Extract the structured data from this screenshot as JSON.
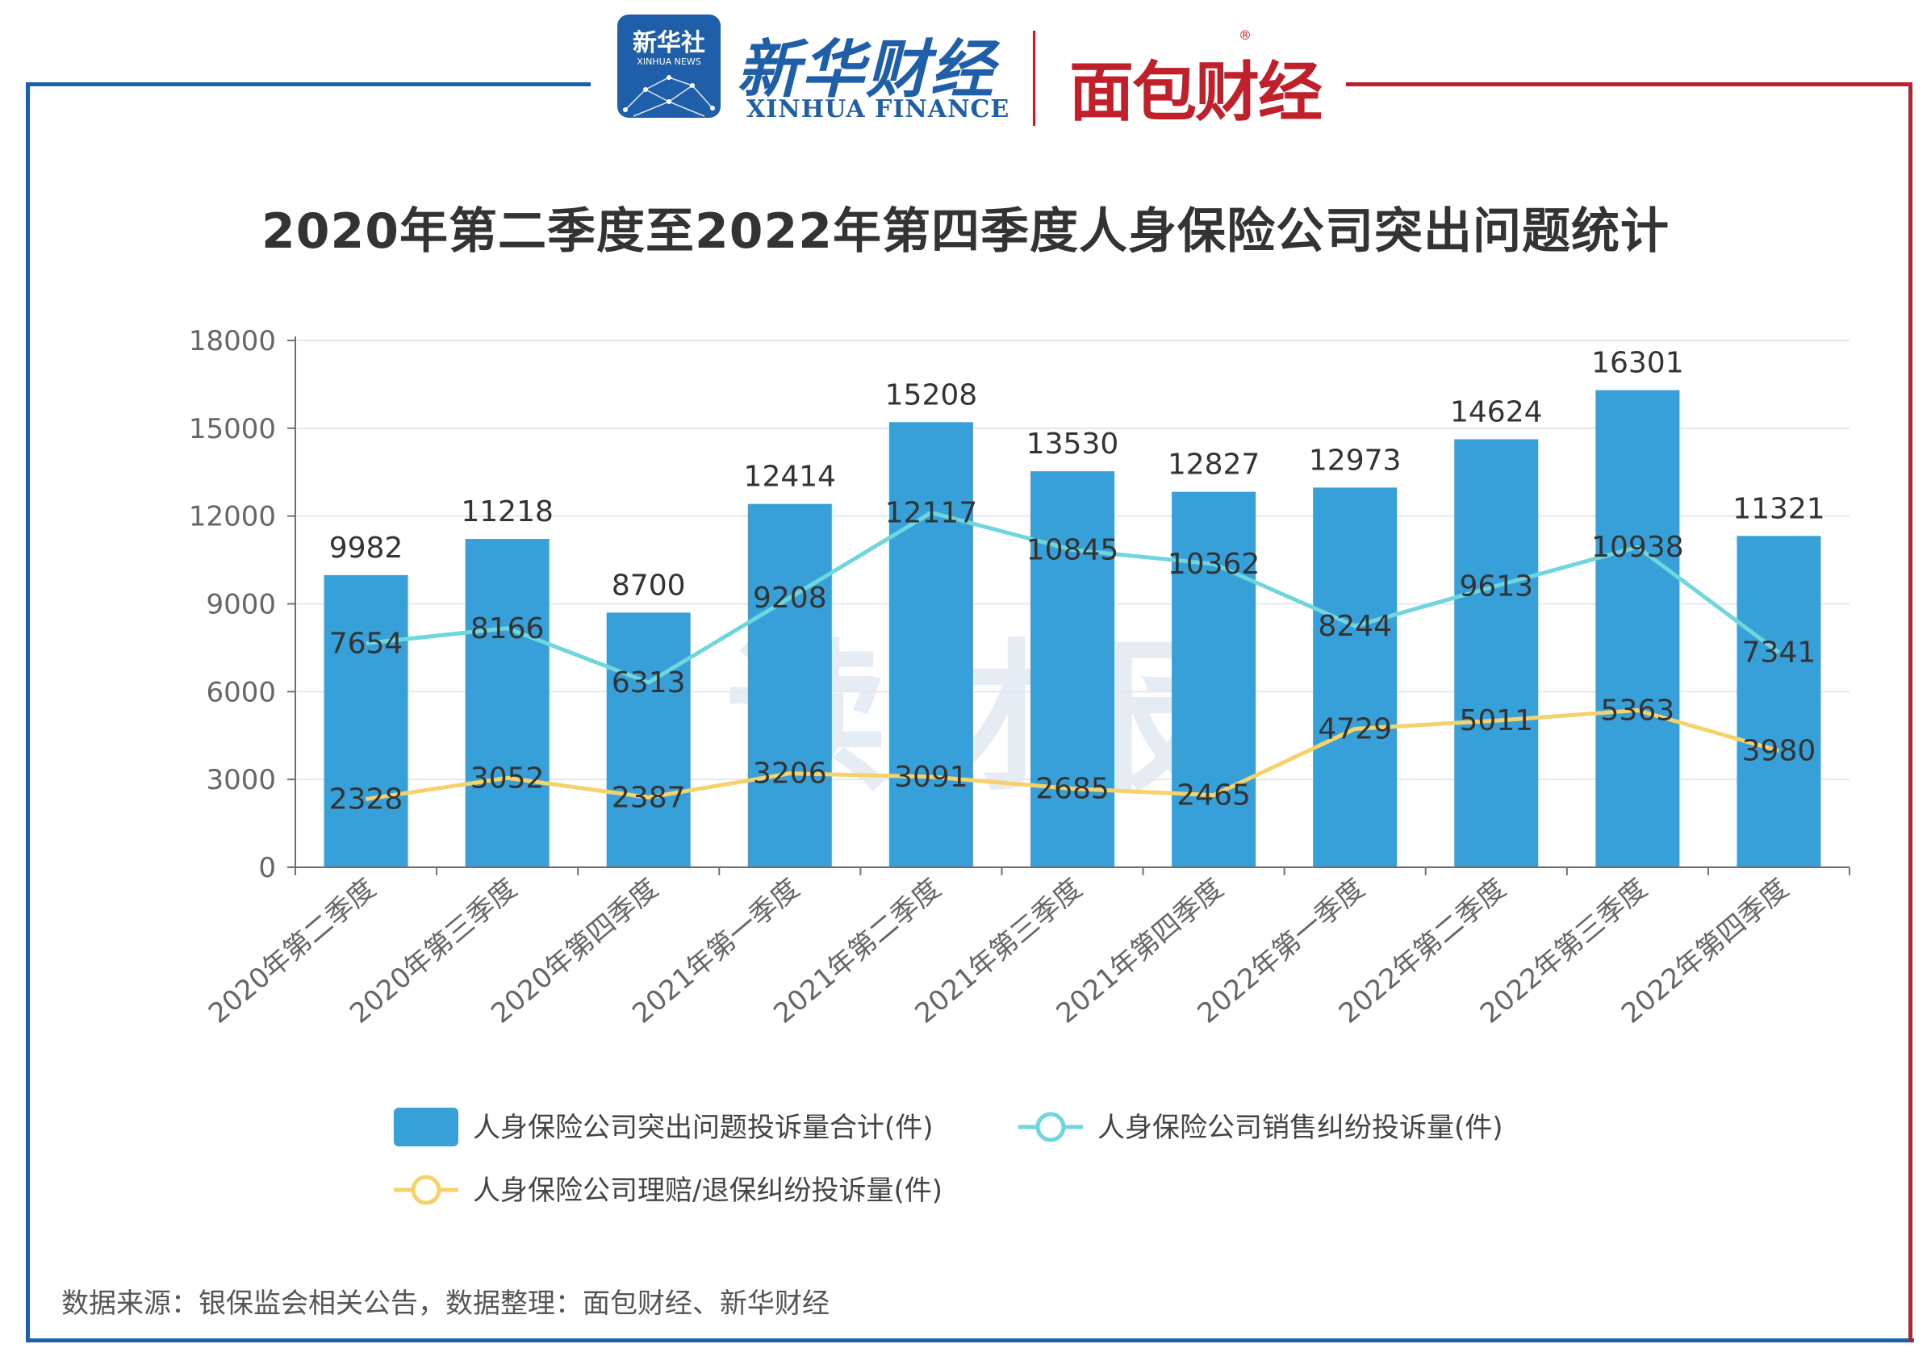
{
  "header": {
    "logo_tile_cn": "新华社",
    "logo_tile_en": "XINHUA NEWS",
    "brand_cn": "新华财经",
    "brand_en": "XINHUA FINANCE",
    "brand2": "面包财经",
    "reg_mark": "®"
  },
  "watermark": "读财报",
  "source_note": "数据来源：银保监会相关公告，数据整理：面包财经、新华财经",
  "colors": {
    "frame_blue": "#1f5ea8",
    "frame_red": "#c0202a",
    "bar": "#38a0d8",
    "sales_line": "#6fd6dd",
    "claims_line": "#f5d26a"
  },
  "chart_data": {
    "type": "bar",
    "title": "2020年第二季度至2022年第四季度人身保险公司突出问题统计",
    "categories": [
      "2020年第二季度",
      "2020年第三季度",
      "2020年第四季度",
      "2021年第一季度",
      "2021年第二季度",
      "2021年第三季度",
      "2021年第四季度",
      "2022年第一季度",
      "2022年第二季度",
      "2022年第三季度",
      "2022年第四季度"
    ],
    "yticks": [
      "0",
      "3000",
      "6000",
      "9000",
      "12000",
      "15000",
      "18000"
    ],
    "ylim": [
      0,
      18000
    ],
    "grid": true,
    "legend_position": "bottom",
    "series": [
      {
        "name": "人身保险公司突出问题投诉量合计(件)",
        "type": "bar",
        "color": "#38a0d8",
        "values": [
          9982,
          11218,
          8700,
          12414,
          15208,
          13530,
          12827,
          12973,
          14624,
          16301,
          11321
        ]
      },
      {
        "name": "人身保险公司销售纠纷投诉量(件)",
        "type": "line",
        "color": "#6fd6dd",
        "values": [
          7654,
          8166,
          6313,
          9208,
          12117,
          10845,
          10362,
          8244,
          9613,
          10938,
          7341
        ]
      },
      {
        "name": "人身保险公司理赔/退保纠纷投诉量(件)",
        "type": "line",
        "color": "#f5d26a",
        "values": [
          2328,
          3052,
          2387,
          3206,
          3091,
          2685,
          2465,
          4729,
          5011,
          5363,
          3980
        ]
      }
    ]
  }
}
